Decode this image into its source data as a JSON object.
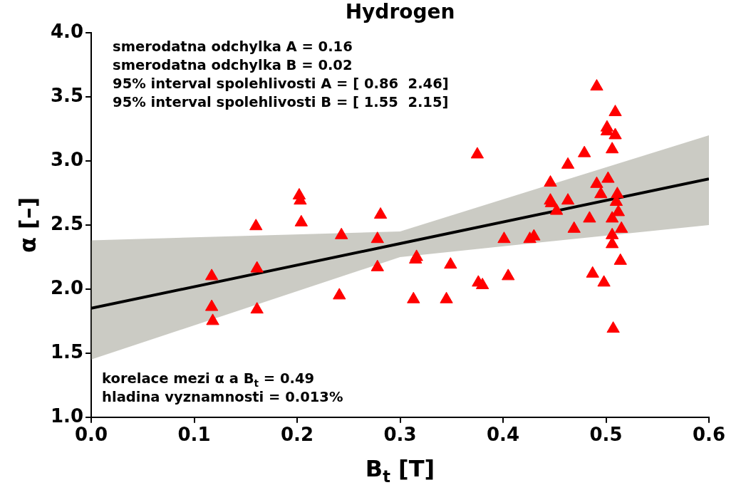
{
  "chart_data": {
    "type": "scatter",
    "title": "Hydrogen",
    "xlabel": "B$_{t}$ [T]",
    "ylabel": "α [–]",
    "xlim": [
      0,
      0.6
    ],
    "xticks": [
      {
        "value": 0,
        "label": "0.0"
      },
      0.1,
      0.2,
      0.3,
      0.4,
      0.5,
      0.6
    ],
    "ylim": [
      1,
      4
    ],
    "yticks": [
      {
        "value": 1,
        "label": "1.0"
      },
      1.5,
      {
        "value": 2,
        "label": "2.0"
      },
      2.5,
      {
        "value": 3,
        "label": "3.0"
      },
      3.5,
      {
        "value": 4,
        "label": "4.0"
      }
    ],
    "grid": false,
    "legend": false,
    "marker": "triangle",
    "annotations": [
      "smerodatna odchylka A = 0.16",
      "smerodatna odchylka B = 0.02",
      "95% interval spolehlivosti A = [ 0.86  2.46]",
      "95% interval spolehlivosti B = [ 1.55  2.15]",
      "korelace mezi α a B$_{t}$ = 0.49",
      "hladina vyznamnosti = 0.013%"
    ],
    "series": [
      {
        "type": "line",
        "color": "#000000",
        "marker": "none",
        "x": [
          0,
          0.3,
          0.6
        ],
        "values": [
          1.85,
          2.355,
          2.86
        ],
        "lower": [
          1.45,
          2.25,
          2.5
        ],
        "upper": [
          2.38,
          2.45,
          3.2
        ]
      },
      {
        "type": "scatter",
        "color": "#ff0000",
        "x": [
          0.117,
          0.117,
          0.118,
          0.16,
          0.161,
          0.161,
          0.202,
          0.203,
          0.204,
          0.243,
          0.241,
          0.281,
          0.278,
          0.278,
          0.313,
          0.315,
          0.316,
          0.345,
          0.349,
          0.375,
          0.376,
          0.38,
          0.401,
          0.405,
          0.426,
          0.43,
          0.446,
          0.446,
          0.447,
          0.452,
          0.463,
          0.463,
          0.469,
          0.479,
          0.484,
          0.487,
          0.491,
          0.491,
          0.495,
          0.498,
          0.501,
          0.501,
          0.502,
          0.506,
          0.506,
          0.506,
          0.506,
          0.507,
          0.509,
          0.509,
          0.51,
          0.511,
          0.512,
          0.515,
          0.514
        ],
        "values": [
          2.1,
          1.86,
          1.75,
          2.49,
          2.16,
          1.84,
          2.73,
          2.69,
          2.52,
          2.42,
          1.95,
          2.58,
          2.39,
          2.17,
          1.92,
          2.23,
          2.25,
          1.92,
          2.19,
          3.05,
          2.05,
          2.03,
          2.39,
          2.1,
          2.39,
          2.41,
          2.83,
          2.69,
          2.67,
          2.61,
          2.97,
          2.69,
          2.47,
          3.06,
          2.55,
          2.12,
          3.58,
          2.82,
          2.74,
          2.05,
          3.23,
          3.26,
          2.86,
          3.09,
          2.55,
          2.42,
          2.35,
          1.69,
          3.38,
          3.2,
          2.68,
          2.74,
          2.6,
          2.47,
          2.22
        ]
      }
    ]
  }
}
